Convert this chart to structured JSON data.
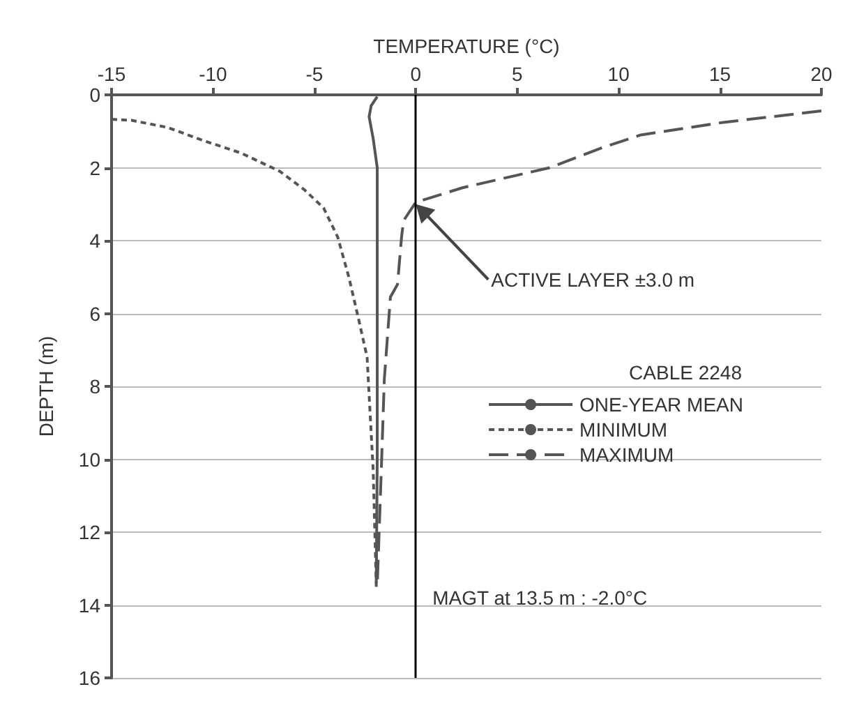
{
  "chart_data": {
    "type": "line",
    "title": "TEMPERATURE (°C)",
    "ylabel": "DEPTH (m)",
    "legend_title": "CABLE 2248",
    "xlim": [
      -15,
      20
    ],
    "xticks": [
      -15,
      -10,
      -5,
      0,
      5,
      10,
      15,
      20
    ],
    "ylim": [
      16,
      0
    ],
    "yticks": [
      0,
      2,
      4,
      6,
      8,
      10,
      12,
      14,
      16
    ],
    "grid": "y",
    "legend": "right",
    "marker": "none",
    "series": [
      {
        "name": "ONE-YEAR MEAN",
        "color": "#555555",
        "line_style": "solid",
        "x": [
          -1.9,
          -2.2,
          -2.3,
          -2.2,
          -2.1,
          -1.9,
          -1.9,
          -1.9,
          -1.9,
          -1.95
        ],
        "values": [
          0.05,
          0.3,
          0.6,
          0.9,
          1.2,
          2,
          3.2,
          6,
          10,
          13.5
        ]
      },
      {
        "name": "MINIMUM",
        "color": "#555555",
        "line_style": "dotted",
        "x": [
          -15,
          -14,
          -12.2,
          -10.5,
          -8.6,
          -6.7,
          -5.5,
          -4.55,
          -3.85,
          -3.3,
          -2.8,
          -2.4,
          -2.1,
          -1.95
        ],
        "values": [
          0.67,
          0.7,
          0.9,
          1.25,
          1.6,
          2.1,
          2.6,
          3.1,
          3.9,
          5,
          6.2,
          7.2,
          10.3,
          13.4
        ]
      },
      {
        "name": "MAXIMUM",
        "color": "#555555",
        "line_style": "dashed",
        "x": [
          20,
          15.1,
          11.1,
          9.2,
          6.6,
          2.3,
          0,
          -0.6,
          -0.7,
          -0.9,
          -1.25,
          -1.55,
          -1.7,
          -1.9
        ],
        "values": [
          0.44,
          0.76,
          1.1,
          1.45,
          2,
          2.55,
          2.95,
          3.45,
          3.9,
          5.2,
          5.55,
          7.8,
          10.3,
          13.5
        ]
      }
    ],
    "ref_lines": [
      {
        "axis": "x",
        "value": 0,
        "color": "#000000",
        "line_style": "solid"
      }
    ],
    "annotations": [
      {
        "text": "ACTIVE LAYER ±3.0 m",
        "x": 0,
        "y": 3
      },
      "MAGT at 13.5 m : -2.0°C"
    ]
  }
}
